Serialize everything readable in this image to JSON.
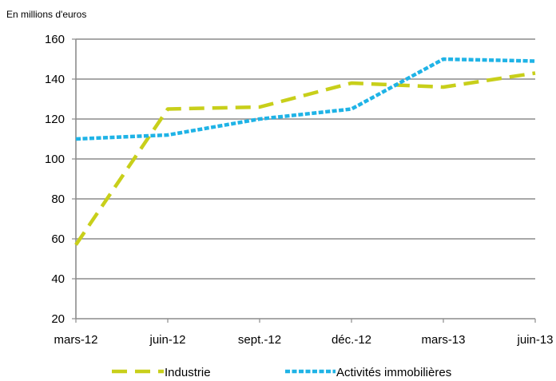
{
  "chart_data": {
    "type": "line",
    "unit_label": "En millions d'euros",
    "categories": [
      "mars-12",
      "juin-12",
      "sept.-12",
      "déc.-12",
      "mars-13",
      "juin-13"
    ],
    "yticks": [
      20,
      40,
      60,
      80,
      100,
      120,
      140,
      160
    ],
    "ylim": [
      20,
      160
    ],
    "grid": true,
    "legend_position": "bottom",
    "series": [
      {
        "name": "Industrie",
        "values": [
          57,
          125,
          126,
          138,
          136,
          143
        ],
        "color": "#c8cf1a",
        "style": "dashed"
      },
      {
        "name": "Activités immobilières",
        "values": [
          110,
          112,
          120,
          125,
          150,
          149
        ],
        "color": "#1fb3e6",
        "style": "dotted"
      }
    ]
  }
}
